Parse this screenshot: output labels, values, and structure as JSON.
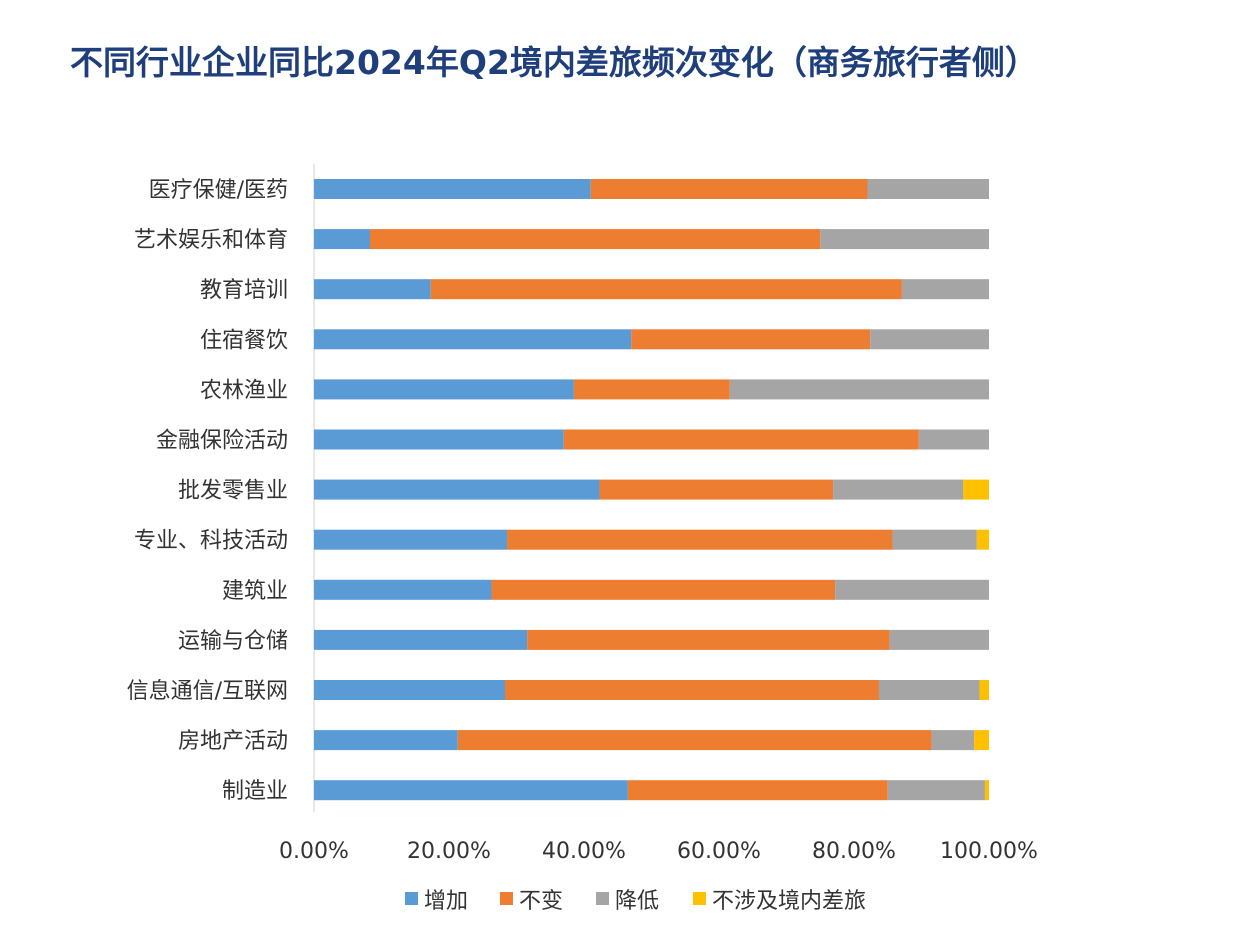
{
  "chart_data": {
    "type": "bar",
    "orientation": "horizontal",
    "stacked": true,
    "title": "不同行业企业同比2024年Q2境内差旅频次变化（商务旅行者侧）",
    "categories": [
      "医疗保健/医药",
      "艺术娱乐和体育",
      "教育培训",
      "住宿餐饮",
      "农林渔业",
      "金融保险活动",
      "批发零售业",
      "专业、科技活动",
      "建筑业",
      "运输与仓储",
      "信息通信/互联网",
      "房地产活动",
      "制造业"
    ],
    "series": [
      {
        "name": "增加",
        "color": "#5b9bd5",
        "values": [
          41.0,
          8.3,
          17.3,
          47.0,
          38.5,
          37.0,
          42.3,
          28.6,
          26.3,
          31.6,
          28.3,
          21.3,
          46.5
        ]
      },
      {
        "name": "不变",
        "color": "#ed7d31",
        "values": [
          41.0,
          66.7,
          69.8,
          35.4,
          23.1,
          52.6,
          34.6,
          57.1,
          50.9,
          53.7,
          55.4,
          70.2,
          38.5
        ]
      },
      {
        "name": "降低",
        "color": "#a5a5a5",
        "values": [
          18.0,
          25.0,
          12.9,
          17.6,
          38.4,
          10.4,
          19.3,
          12.5,
          22.8,
          14.7,
          14.9,
          6.3,
          14.4
        ]
      },
      {
        "name": "不涉及境内差旅",
        "color": "#ffc000",
        "values": [
          0.0,
          0.0,
          0.0,
          0.0,
          0.0,
          0.0,
          3.8,
          1.8,
          0.0,
          0.0,
          1.4,
          2.2,
          0.6
        ]
      }
    ],
    "xlim": [
      0,
      100
    ],
    "xticks": [
      "0.00%",
      "20.00%",
      "40.00%",
      "60.00%",
      "80.00%",
      "100.00%"
    ],
    "xtick_values": [
      0,
      20,
      40,
      60,
      80,
      100
    ],
    "xlabel": "",
    "ylabel": "",
    "grid": false,
    "legend_position": "bottom"
  }
}
